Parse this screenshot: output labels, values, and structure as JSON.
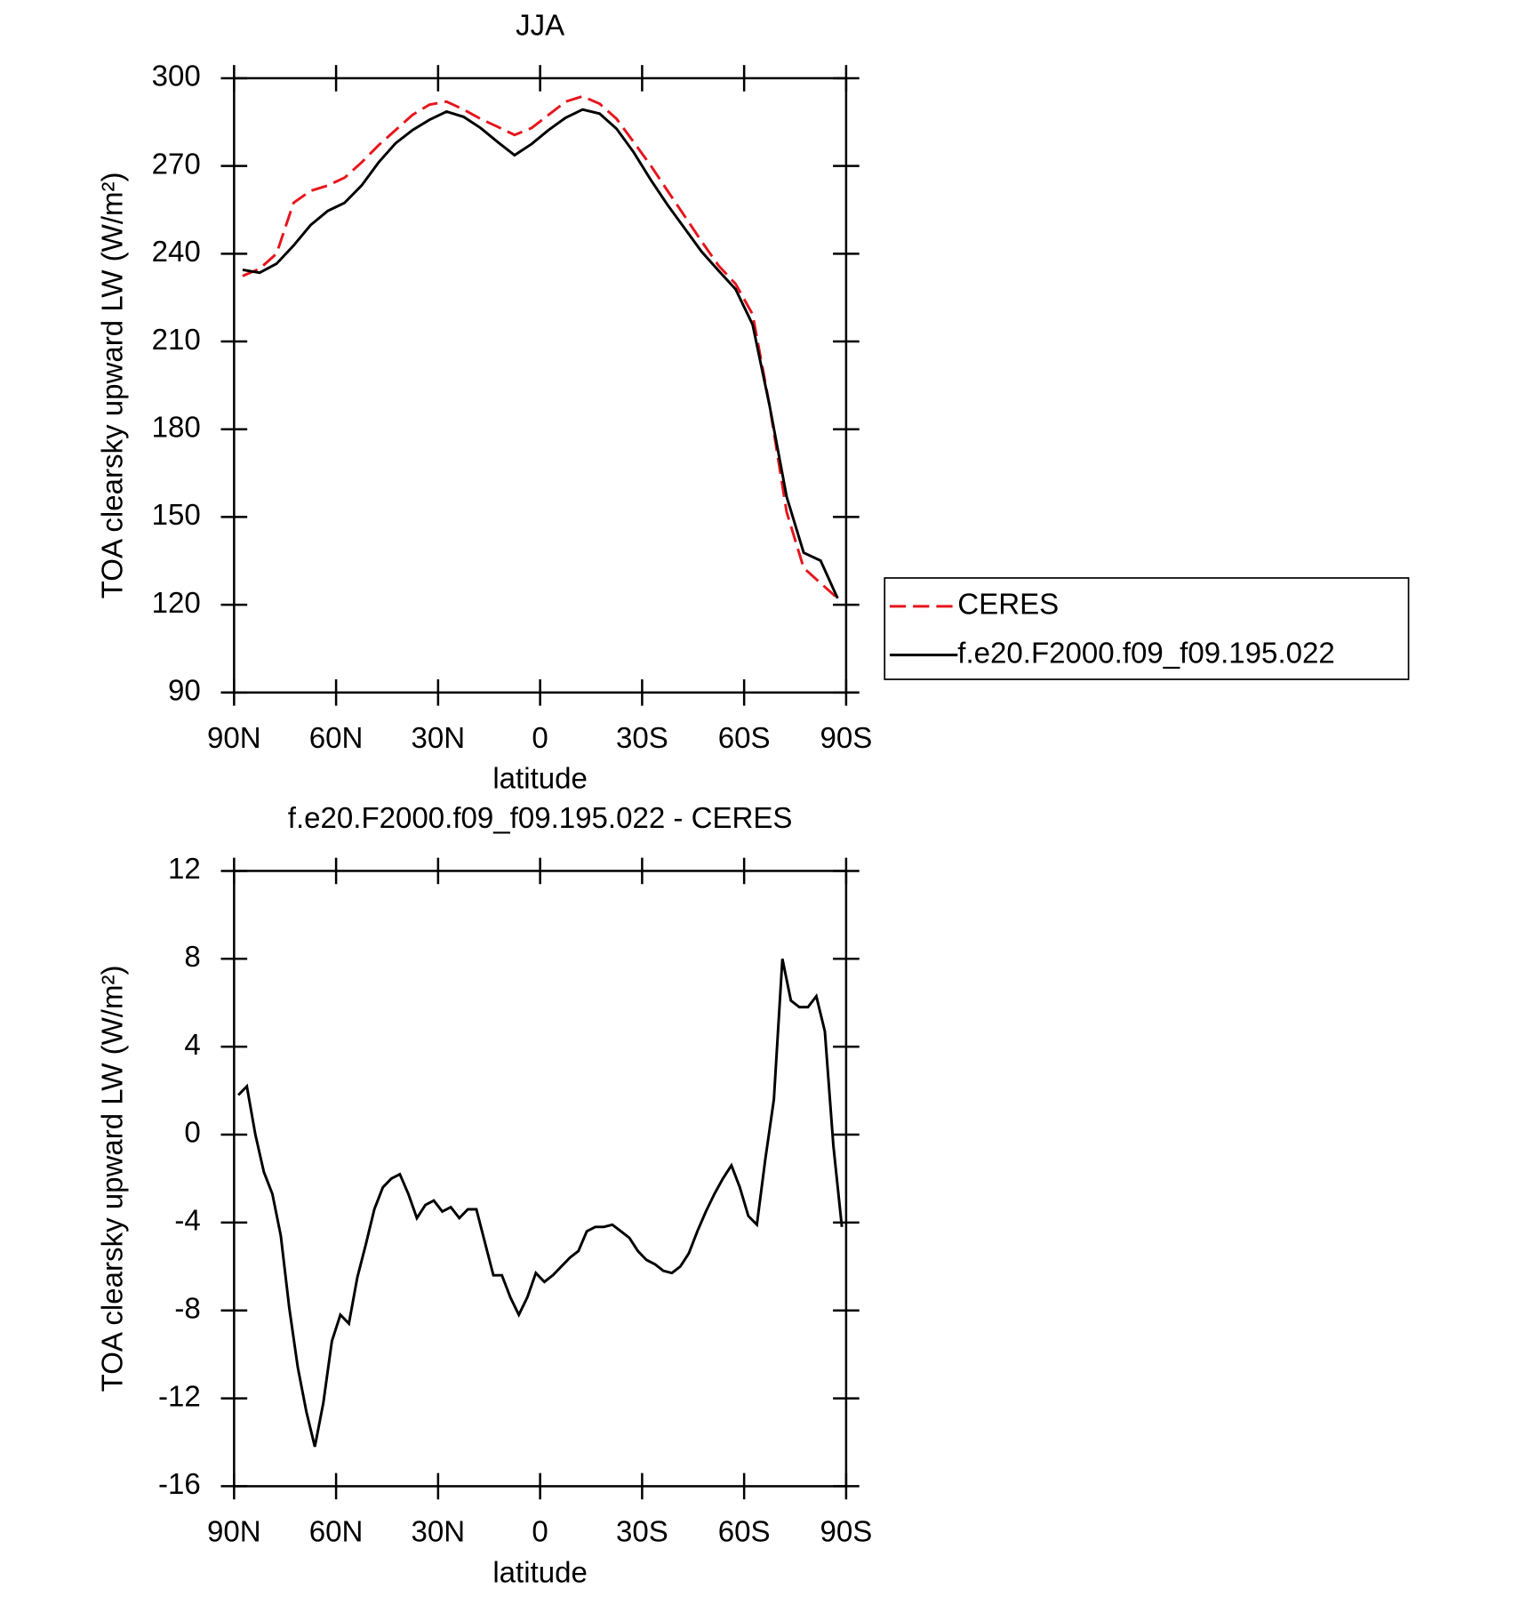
{
  "chart_data": [
    {
      "type": "line",
      "title": "JJA",
      "xlabel": "latitude",
      "ylabel": "TOA clearsky upward LW (W/m²)",
      "x": [
        87.5,
        82.5,
        77.5,
        72.5,
        67.5,
        62.5,
        57.5,
        52.5,
        47.5,
        42.5,
        37.5,
        32.5,
        27.5,
        22.5,
        17.5,
        12.5,
        7.5,
        2.5,
        -2.5,
        -7.5,
        -12.5,
        -17.5,
        -22.5,
        -27.5,
        -32.5,
        -37.5,
        -42.5,
        -47.5,
        -52.5,
        -57.5,
        -62.5,
        -67.5,
        -72.5,
        -77.5,
        -82.5,
        -87.5
      ],
      "series": [
        {
          "name": "CERES",
          "color": "#e8141c",
          "line_style": "dashed",
          "values": [
            232.4,
            234.9,
            240,
            257.4,
            261.5,
            263.3,
            266,
            271.2,
            277.1,
            282.3,
            287.5,
            291,
            292,
            289.3,
            286.1,
            283.4,
            280.6,
            283,
            287.5,
            292,
            293.8,
            291.3,
            286.1,
            278.2,
            270.2,
            261.5,
            252.9,
            244.2,
            235.9,
            229.7,
            219.3,
            188,
            151.7,
            132.6,
            127.4,
            122.2
          ]
        },
        {
          "name": "f.e20.F2000.f09_f09.195.022",
          "color": "#000000",
          "line_style": "solid",
          "values": [
            234.5,
            233.5,
            236.6,
            242.8,
            249.8,
            254.6,
            257.4,
            263.3,
            271.2,
            277.8,
            282.3,
            285.8,
            288.6,
            286.8,
            283,
            278.2,
            273.7,
            277.5,
            282.3,
            286.5,
            289.3,
            287.9,
            282.7,
            274.7,
            265.3,
            256.7,
            248.7,
            240.7,
            234.2,
            227.9,
            215.8,
            188,
            156.9,
            137.8,
            135.1,
            122.2
          ]
        }
      ],
      "xlim": [
        90,
        -90
      ],
      "xticks": [
        {
          "value": 90,
          "label": "90N"
        },
        {
          "value": 60,
          "label": "60N"
        },
        {
          "value": 30,
          "label": "30N"
        },
        0,
        {
          "value": -30,
          "label": "30S"
        },
        {
          "value": -60,
          "label": "60S"
        },
        {
          "value": -90,
          "label": "90S"
        }
      ],
      "ylim": [
        90,
        300
      ],
      "yticks": [
        90,
        120,
        150,
        180,
        210,
        240,
        270,
        300
      ],
      "legend": "right"
    },
    {
      "type": "line",
      "title": "f.e20.F2000.f09_f09.195.022 - CERES",
      "xlabel": "latitude",
      "ylabel": "TOA clearsky upward LW (W/m²)",
      "x": [
        88.75,
        86.25,
        83.75,
        81.25,
        78.75,
        76.25,
        73.75,
        71.25,
        68.75,
        66.25,
        63.75,
        61.25,
        58.75,
        56.25,
        53.75,
        51.25,
        48.75,
        46.25,
        43.75,
        41.25,
        38.75,
        36.25,
        33.75,
        31.25,
        28.75,
        26.25,
        23.75,
        21.25,
        18.75,
        16.25,
        13.75,
        11.25,
        8.75,
        6.25,
        3.75,
        1.25,
        -1.25,
        -3.75,
        -6.25,
        -8.75,
        -11.25,
        -13.75,
        -16.25,
        -18.75,
        -21.25,
        -23.75,
        -26.25,
        -28.75,
        -31.25,
        -33.75,
        -36.25,
        -38.75,
        -41.25,
        -43.75,
        -46.25,
        -48.75,
        -51.25,
        -53.75,
        -56.25,
        -58.75,
        -61.25,
        -63.75,
        -66.25,
        -68.75,
        -71.25,
        -73.75,
        -76.25,
        -78.75,
        -81.25,
        -83.75,
        -86.25,
        -88.75
      ],
      "series": [
        {
          "color": "#000000",
          "line_style": "solid",
          "values": [
            1.8,
            2.2,
            0.0,
            -1.7,
            -2.7,
            -4.6,
            -7.9,
            -10.6,
            -12.6,
            -14.2,
            -12.2,
            -9.4,
            -8.2,
            -8.6,
            -6.5,
            -5.0,
            -3.4,
            -2.4,
            -2.0,
            -1.8,
            -2.7,
            -3.8,
            -3.2,
            -3.0,
            -3.5,
            -3.3,
            -3.8,
            -3.4,
            -3.4,
            -4.9,
            -6.4,
            -6.4,
            -7.4,
            -8.2,
            -7.4,
            -6.3,
            -6.7,
            -6.4,
            -6.0,
            -5.6,
            -5.3,
            -4.4,
            -4.2,
            -4.2,
            -4.1,
            -4.4,
            -4.7,
            -5.3,
            -5.7,
            -5.9,
            -6.2,
            -6.3,
            -6.0,
            -5.4,
            -4.4,
            -3.5,
            -2.7,
            -2.0,
            -1.4,
            -2.4,
            -3.7,
            -4.1,
            -1.1,
            1.6,
            8.0,
            6.1,
            5.8,
            5.8,
            6.3,
            4.7,
            -0.5,
            -4.2
          ]
        }
      ],
      "xlim": [
        90,
        -90
      ],
      "xticks": [
        {
          "value": 90,
          "label": "90N"
        },
        {
          "value": 60,
          "label": "60N"
        },
        {
          "value": 30,
          "label": "30N"
        },
        0,
        {
          "value": -30,
          "label": "30S"
        },
        {
          "value": -60,
          "label": "60S"
        },
        {
          "value": -90,
          "label": "90S"
        }
      ],
      "ylim": [
        -16,
        12
      ],
      "yticks": [
        -16,
        -12,
        -8,
        -4,
        0,
        4,
        8,
        12
      ]
    }
  ]
}
